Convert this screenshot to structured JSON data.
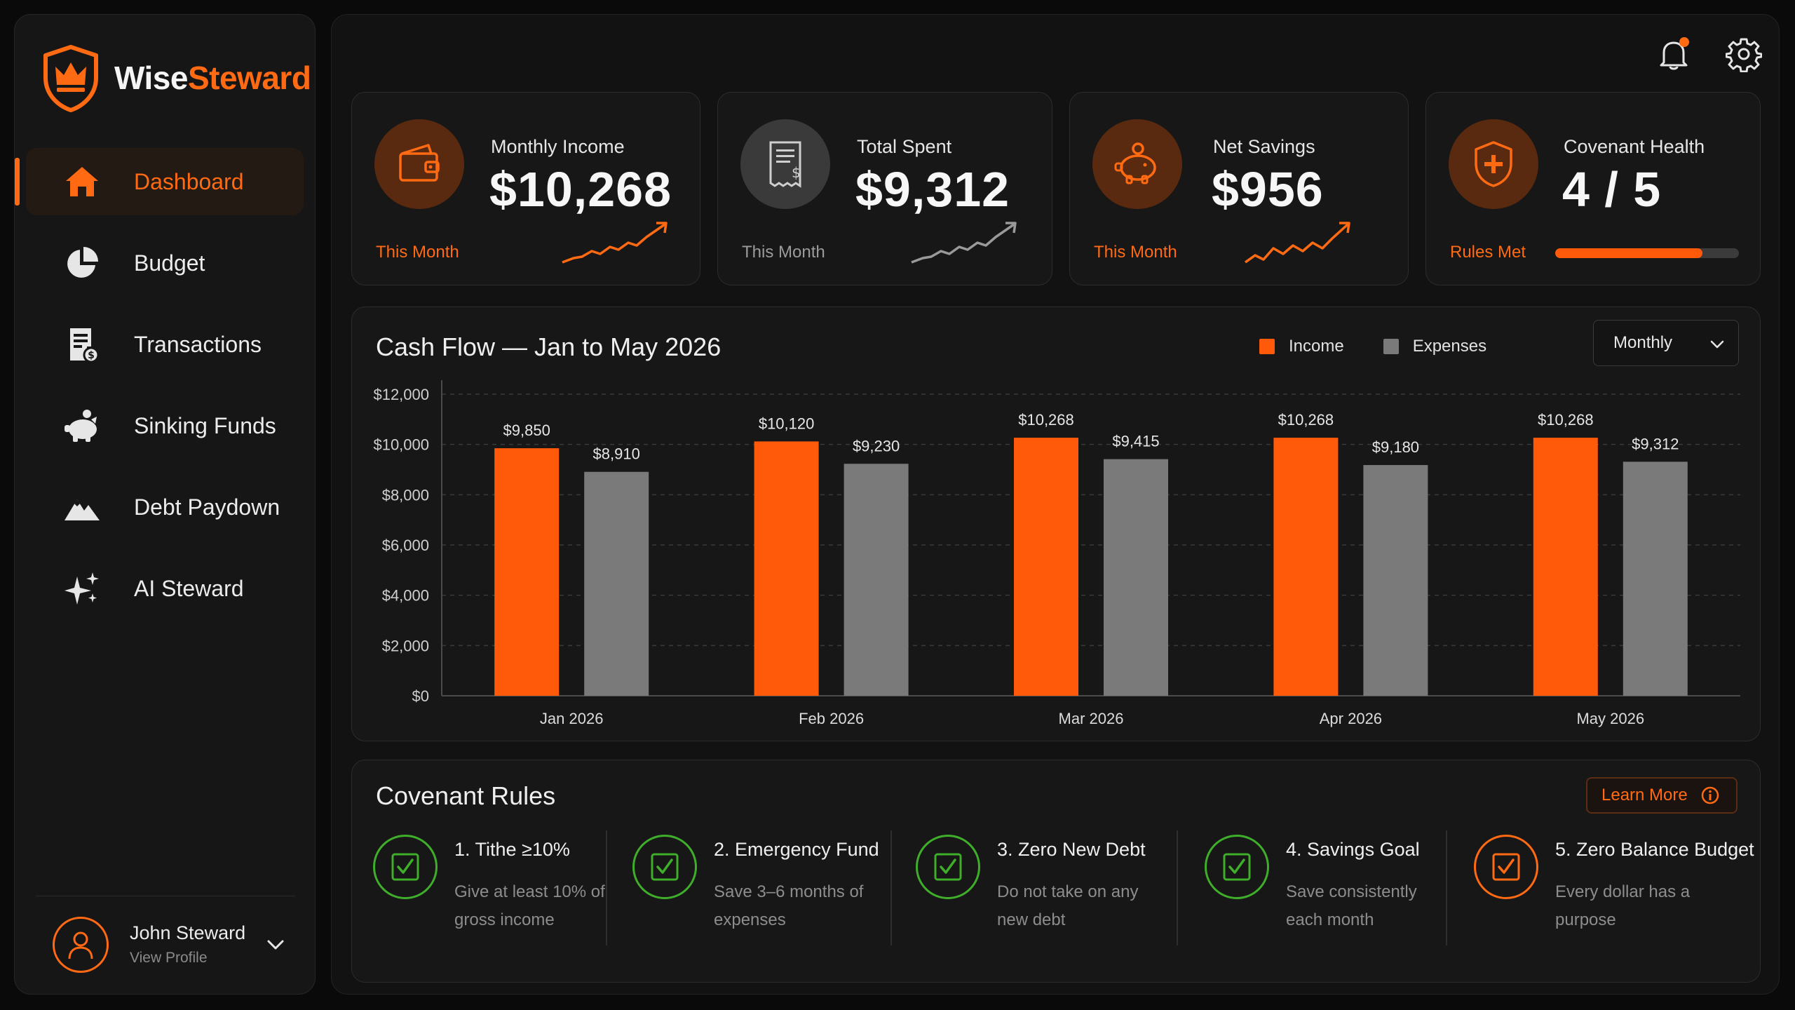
{
  "brand": {
    "name_part1": "Wise",
    "name_part2": "Steward"
  },
  "nav": [
    {
      "label": "Dashboard",
      "icon": "home-icon",
      "active": true
    },
    {
      "label": "Budget",
      "icon": "pie-chart-icon",
      "active": false
    },
    {
      "label": "Transactions",
      "icon": "receipt-icon",
      "active": false
    },
    {
      "label": "Sinking Funds",
      "icon": "piggy-bank-icon",
      "active": false
    },
    {
      "label": "Debt Paydown",
      "icon": "mountain-icon",
      "active": false
    },
    {
      "label": "AI Steward",
      "icon": "sparkles-icon",
      "active": false
    }
  ],
  "profile": {
    "name": "John Steward",
    "sub": "View Profile"
  },
  "cards": [
    {
      "title": "Monthly Income",
      "value": "$10,268",
      "sub": "This Month",
      "icon": "wallet-icon"
    },
    {
      "title": "Total Spent",
      "value": "$9,312",
      "sub": "This Month",
      "icon": "receipt-dollar-icon"
    },
    {
      "title": "Net Savings",
      "value": "$956",
      "sub": "This Month",
      "icon": "piggy-bank-icon"
    },
    {
      "title": "Covenant Health",
      "value": "4 / 5",
      "sub": "Rules Met",
      "icon": "shield-plus-icon",
      "progress": 0.8
    }
  ],
  "colors": {
    "accent": "#ff6a13",
    "expense": "#7a7a7a",
    "success": "#3fae2a",
    "background": "#0a0a0a"
  },
  "chart_data": {
    "type": "bar",
    "title": "Cash Flow — Jan to May 2026",
    "categories": [
      "Jan 2026",
      "Feb 2026",
      "Mar 2026",
      "Apr 2026",
      "May 2026"
    ],
    "series": [
      {
        "name": "Income",
        "values": [
          9850,
          10120,
          10268,
          10268,
          10268
        ],
        "labels": [
          "$9,850",
          "$10,120",
          "$10,268",
          "$10,268",
          "$10,268"
        ]
      },
      {
        "name": "Expenses",
        "values": [
          8910,
          9230,
          9415,
          9180,
          9312
        ],
        "labels": [
          "$8,910",
          "$9,230",
          "$9,415",
          "$9,180",
          "$9,312"
        ]
      }
    ],
    "ylim": [
      0,
      12000
    ],
    "yticks": [
      "$0",
      "$2,000",
      "$4,000",
      "$6,000",
      "$8,000",
      "$10,000",
      "$12,000"
    ],
    "grid": true,
    "legend": "top-right"
  },
  "chart_controls": {
    "period": "Monthly"
  },
  "rules": {
    "title": "Covenant Rules",
    "learn_more": "Learn More",
    "items": [
      {
        "name": "1. Tithe ≥10%",
        "desc": "Give at least 10% of gross income",
        "status": "met"
      },
      {
        "name": "2. Emergency Fund",
        "desc": "Save 3–6 months of expenses",
        "status": "met"
      },
      {
        "name": "3. Zero New Debt",
        "desc": "Do not take on any new debt",
        "status": "met"
      },
      {
        "name": "4. Savings Goal",
        "desc": "Save consistently each month",
        "status": "met"
      },
      {
        "name": "5. Zero Balance Budget",
        "desc": "Every dollar has a purpose",
        "status": "pending"
      }
    ]
  }
}
